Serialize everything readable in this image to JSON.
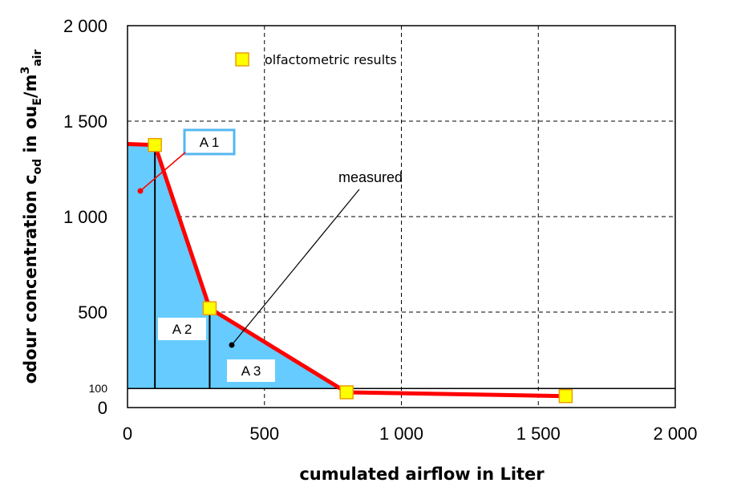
{
  "chart_data": {
    "type": "area",
    "xlabel": "cumulated airflow in Liter",
    "ylabel_parts": {
      "pre": "odour concentration c",
      "sub1": "od",
      "mid": " in ou",
      "sub2": "E",
      "mid2": "/m",
      "sup": "3",
      "sub3": "air"
    },
    "xlim": [
      0,
      2000
    ],
    "ylim": [
      0,
      2000
    ],
    "x_ticks": [
      0,
      500,
      1000,
      1500,
      2000
    ],
    "x_tick_labels": [
      "0",
      "500",
      "1 000",
      "1 500",
      "2 000"
    ],
    "y_ticks": [
      0,
      500,
      1000,
      1500,
      2000
    ],
    "y_tick_labels": [
      "0",
      "500",
      "1 000",
      "1 500",
      "2 000"
    ],
    "y_extra_tick": 100,
    "y_extra_tick_label": "100",
    "grid": true,
    "baseline": 100,
    "series": [
      {
        "name": "measured",
        "color": "#ff0000",
        "x": [
          0,
          100,
          300,
          800,
          1600
        ],
        "y": [
          1380,
          1375,
          520,
          80,
          60
        ]
      },
      {
        "name": "olfactometric results",
        "type": "scatter",
        "marker_fill": "#ffff00",
        "marker_edge": "#e8a000",
        "x": [
          100,
          300,
          800,
          1600
        ],
        "y": [
          1375,
          520,
          80,
          60
        ]
      }
    ],
    "area_fill": "#66ccff",
    "area_labels": [
      "A 1",
      "A 2",
      "A 3"
    ],
    "annotation": "measured",
    "legend_label": "olfactometric results"
  }
}
